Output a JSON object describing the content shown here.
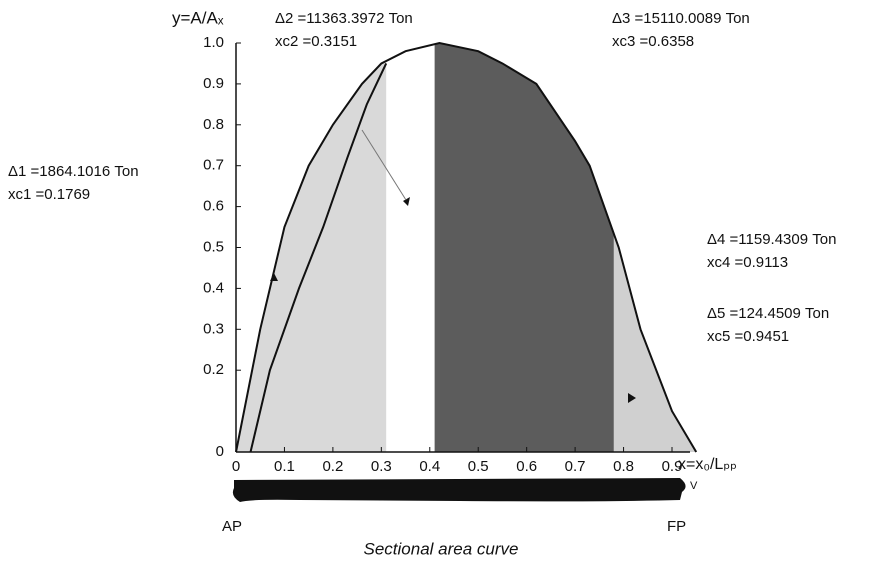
{
  "chart_data": {
    "type": "line",
    "caption": "Sectional area curve",
    "ylabel": "y=A/Aₓ",
    "xlabel": "x=x₀/Lₚₚ",
    "xlim": [
      0,
      0.9
    ],
    "ylim": [
      0,
      1
    ],
    "xticks": [
      0,
      0.1,
      0.2,
      0.3,
      0.4,
      0.5,
      0.6,
      0.7,
      0.8,
      0.9
    ],
    "yticks": [
      0,
      0.2,
      0.3,
      0.4,
      0.5,
      0.6,
      0.7,
      0.8,
      0.9,
      {
        "value": 1,
        "label": "1.0"
      }
    ],
    "series": [
      {
        "color": "#111111",
        "x": [
          0,
          0.05,
          0.1,
          0.15,
          0.2,
          0.26,
          0.3,
          0.35,
          0.42,
          0.5,
          0.55,
          0.62,
          0.7,
          0.73,
          0.79,
          0.835,
          0.9,
          0.95
        ],
        "values": [
          0,
          0.3,
          0.55,
          0.7,
          0.8,
          0.9,
          0.95,
          0.98,
          1.0,
          0.98,
          0.95,
          0.9,
          0.76,
          0.7,
          0.5,
          0.3,
          0.1,
          0
        ]
      },
      {
        "color": "#111111",
        "x": [
          0.03,
          0.07,
          0.13,
          0.18,
          0.23,
          0.27,
          0.31
        ],
        "values": [
          0,
          0.2,
          0.4,
          0.55,
          0.72,
          0.85,
          0.95
        ]
      }
    ],
    "regions": [
      {
        "x0": 0,
        "x1": 0.31,
        "color": "#d9d9d9"
      },
      {
        "x0": 0.41,
        "x1": 0.78,
        "color": "#5c5c5c"
      },
      {
        "x0": 0.78,
        "x1": 0.95,
        "color": "#d0d0d0"
      }
    ],
    "annotations": [
      {
        "lines": [
          "Δ1 =1864.1016 Ton",
          "xc1 =0.1769"
        ]
      },
      {
        "lines": [
          "Δ2 =11363.3972 Ton",
          "xc2 =0.3151"
        ]
      },
      {
        "lines": [
          "Δ3 =15110.0089 Ton",
          "xc3 =0.6358"
        ]
      },
      {
        "lines": [
          "Δ4 =1159.4309 Ton",
          "xc4 =0.9113"
        ]
      },
      {
        "lines": [
          "Δ5 =124.4509 Ton",
          "xc5 =0.9451"
        ]
      }
    ],
    "hull_labels": [
      "AP",
      "FP",
      "V"
    ]
  }
}
